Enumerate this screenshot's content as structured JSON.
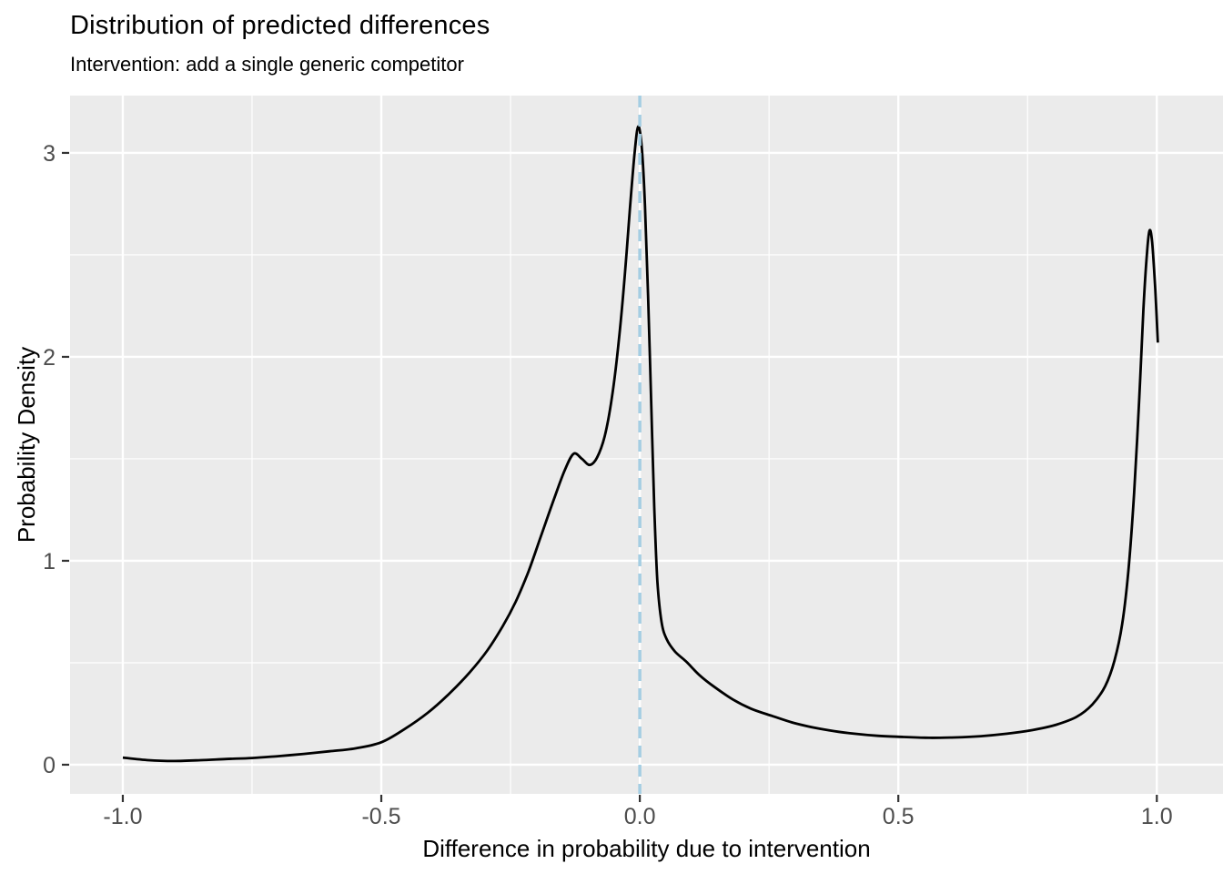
{
  "header": {
    "title": "Distribution of predicted differences",
    "subtitle": "Intervention: add a single generic competitor"
  },
  "colors": {
    "panel_background": "#EBEBEB",
    "gridline": "#FFFFFF",
    "density_curve": "#000000",
    "reference_line": "#A4CEE3",
    "tick_label": "#4D4D4D",
    "tick_mark": "#333333",
    "axis_title": "#000000"
  },
  "chart_data": {
    "type": "line",
    "subtype": "density",
    "title": "Distribution of predicted differences",
    "subtitle": "Intervention: add a single generic competitor",
    "xlabel": "Difference in probability due to intervention",
    "ylabel": "Probability Density",
    "xlim": [
      -1.102,
      1.128
    ],
    "ylim": [
      -0.143,
      3.281
    ],
    "grid": "on",
    "legend": "none",
    "x_ticks": [
      -1.0,
      -0.5,
      0.0,
      0.5,
      1.0
    ],
    "x_tick_labels": [
      "-1.0",
      "-0.5",
      "0.0",
      "0.5",
      "1.0"
    ],
    "x_minor_ticks": [
      -0.75,
      -0.25,
      0.25,
      0.75
    ],
    "y_ticks": [
      0,
      1,
      2,
      3
    ],
    "y_tick_labels": [
      "0",
      "1",
      "2",
      "3"
    ],
    "y_minor_ticks": [
      0.5,
      1.5,
      2.5
    ],
    "vline": {
      "x": 0.0,
      "style": "dashed",
      "color": "#A4CEE3"
    },
    "series": [
      {
        "name": "predicted-difference-density",
        "points": [
          [
            -1.0,
            0.035
          ],
          [
            -0.95,
            0.022
          ],
          [
            -0.9,
            0.018
          ],
          [
            -0.85,
            0.022
          ],
          [
            -0.8,
            0.028
          ],
          [
            -0.75,
            0.033
          ],
          [
            -0.7,
            0.042
          ],
          [
            -0.65,
            0.053
          ],
          [
            -0.6,
            0.066
          ],
          [
            -0.55,
            0.08
          ],
          [
            -0.5,
            0.11
          ],
          [
            -0.455,
            0.175
          ],
          [
            -0.41,
            0.255
          ],
          [
            -0.37,
            0.345
          ],
          [
            -0.33,
            0.45
          ],
          [
            -0.295,
            0.56
          ],
          [
            -0.265,
            0.68
          ],
          [
            -0.24,
            0.8
          ],
          [
            -0.215,
            0.95
          ],
          [
            -0.19,
            1.13
          ],
          [
            -0.165,
            1.31
          ],
          [
            -0.145,
            1.445
          ],
          [
            -0.128,
            1.525
          ],
          [
            -0.112,
            1.5
          ],
          [
            -0.097,
            1.47
          ],
          [
            -0.083,
            1.505
          ],
          [
            -0.068,
            1.61
          ],
          [
            -0.054,
            1.8
          ],
          [
            -0.041,
            2.07
          ],
          [
            -0.029,
            2.4
          ],
          [
            -0.019,
            2.73
          ],
          [
            -0.01,
            3.0
          ],
          [
            -0.003,
            3.13
          ],
          [
            0.004,
            3.02
          ],
          [
            0.01,
            2.74
          ],
          [
            0.016,
            2.3
          ],
          [
            0.022,
            1.78
          ],
          [
            0.028,
            1.26
          ],
          [
            0.034,
            0.9
          ],
          [
            0.042,
            0.7
          ],
          [
            0.052,
            0.615
          ],
          [
            0.068,
            0.555
          ],
          [
            0.09,
            0.505
          ],
          [
            0.115,
            0.44
          ],
          [
            0.145,
            0.38
          ],
          [
            0.18,
            0.32
          ],
          [
            0.215,
            0.275
          ],
          [
            0.255,
            0.24
          ],
          [
            0.295,
            0.207
          ],
          [
            0.335,
            0.183
          ],
          [
            0.375,
            0.165
          ],
          [
            0.415,
            0.152
          ],
          [
            0.46,
            0.142
          ],
          [
            0.51,
            0.136
          ],
          [
            0.56,
            0.132
          ],
          [
            0.61,
            0.134
          ],
          [
            0.66,
            0.14
          ],
          [
            0.71,
            0.152
          ],
          [
            0.76,
            0.17
          ],
          [
            0.805,
            0.196
          ],
          [
            0.845,
            0.235
          ],
          [
            0.875,
            0.295
          ],
          [
            0.9,
            0.385
          ],
          [
            0.918,
            0.51
          ],
          [
            0.933,
            0.69
          ],
          [
            0.945,
            0.95
          ],
          [
            0.956,
            1.33
          ],
          [
            0.966,
            1.8
          ],
          [
            0.974,
            2.23
          ],
          [
            0.981,
            2.51
          ],
          [
            0.986,
            2.62
          ],
          [
            0.991,
            2.56
          ],
          [
            0.997,
            2.33
          ],
          [
            1.002,
            2.07
          ]
        ]
      }
    ]
  }
}
